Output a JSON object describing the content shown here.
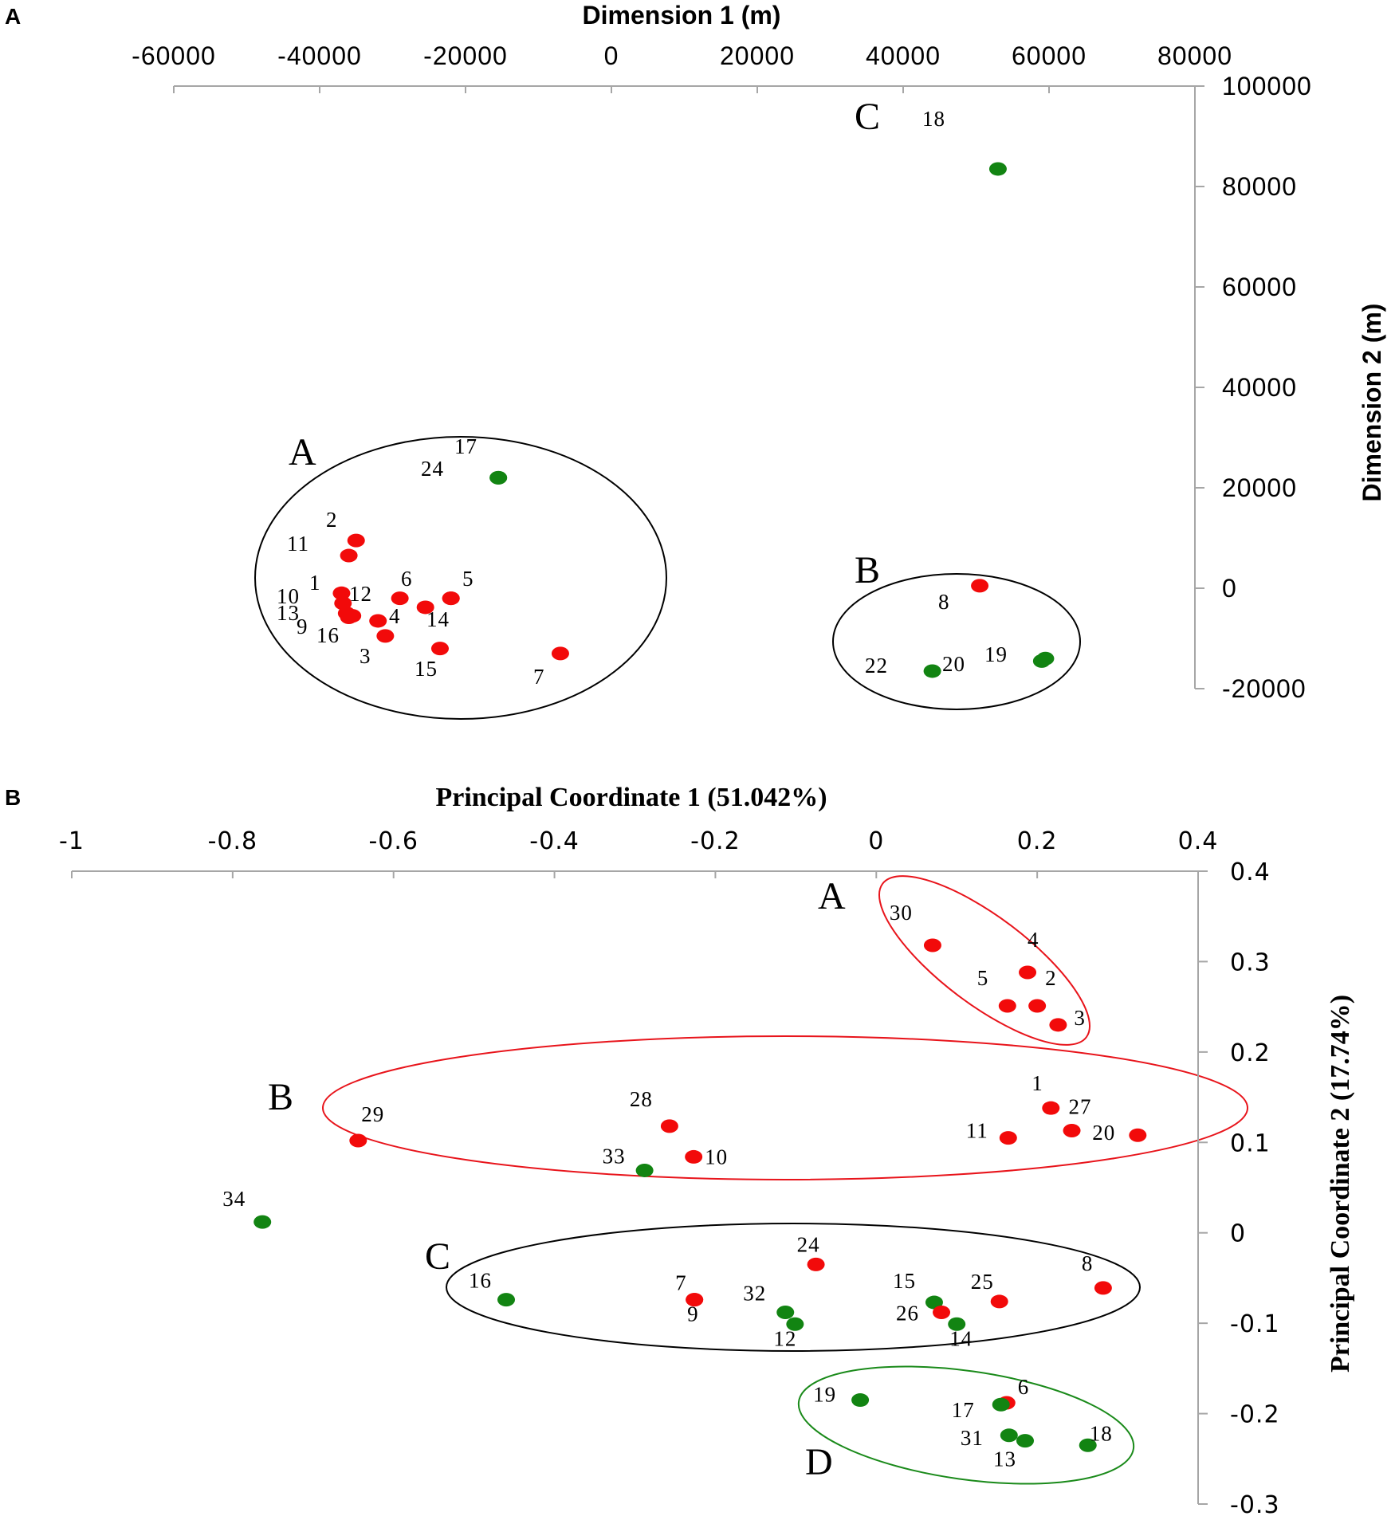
{
  "panels": {
    "a": "A",
    "b": "B"
  },
  "chart_data": [
    {
      "type": "scatter",
      "panel": "A",
      "xlabel": "Dimension 1 (m)",
      "ylabel": "Dimension 2 (m)",
      "xlim": [
        -60000,
        80000
      ],
      "ylim": [
        -20000,
        100000
      ],
      "xticks": [
        -60000,
        -40000,
        -20000,
        0,
        20000,
        40000,
        60000,
        80000
      ],
      "yticks": [
        100000,
        80000,
        60000,
        40000,
        20000,
        0,
        -20000
      ],
      "points": [
        {
          "label": "1",
          "x": -37000,
          "y": -1000,
          "color": "red"
        },
        {
          "label": "10",
          "x": -36800,
          "y": -3000,
          "color": "red"
        },
        {
          "label": "13",
          "x": -36300,
          "y": -5000,
          "color": "red"
        },
        {
          "label": "9",
          "x": -35500,
          "y": -5500,
          "color": "red"
        },
        {
          "label": "16",
          "x": -36000,
          "y": -5800,
          "color": "red"
        },
        {
          "label": "2",
          "x": -35000,
          "y": 9500,
          "color": "red"
        },
        {
          "label": "11",
          "x": -36000,
          "y": 6500,
          "color": "red"
        },
        {
          "label": "12",
          "x": -32000,
          "y": -6500,
          "color": "red"
        },
        {
          "label": "4",
          "x": -29000,
          "y": -2000,
          "color": "red"
        },
        {
          "label": "6",
          "x": -25500,
          "y": -3800,
          "color": "red"
        },
        {
          "label": "3",
          "x": -31000,
          "y": -9500,
          "color": "red"
        },
        {
          "label": "14",
          "x": -22000,
          "y": -2000,
          "color": "red"
        },
        {
          "label": "5",
          "x": -22000,
          "y": -2000,
          "color": "red"
        },
        {
          "label": "15",
          "x": -23500,
          "y": -12000,
          "color": "red"
        },
        {
          "label": "7",
          "x": -7000,
          "y": -13000,
          "color": "red"
        },
        {
          "label": "17",
          "x": -15500,
          "y": 22000,
          "color": "green"
        },
        {
          "label": "24",
          "x": -15500,
          "y": 22000,
          "color": "green"
        },
        {
          "label": "8",
          "x": 50500,
          "y": 500,
          "color": "red"
        },
        {
          "label": "22",
          "x": 44000,
          "y": -16500,
          "color": "green"
        },
        {
          "label": "20",
          "x": 59000,
          "y": -14500,
          "color": "green"
        },
        {
          "label": "19",
          "x": 59500,
          "y": -14000,
          "color": "green"
        },
        {
          "label": "18",
          "x": 53000,
          "y": 83500,
          "color": "green"
        }
      ],
      "point_labels": [
        "1",
        "2",
        "3",
        "4",
        "5",
        "6",
        "7",
        "8",
        "9",
        "10",
        "11",
        "12",
        "13",
        "14",
        "15",
        "16",
        "17",
        "18",
        "19",
        "20",
        "22",
        "24"
      ],
      "groups": [
        "A",
        "B",
        "C"
      ]
    },
    {
      "type": "scatter",
      "panel": "B",
      "xlabel": "Principal Coordinate 1 (51.042%)",
      "ylabel": "Principal Coordinate 2 (17.74%)",
      "xlim": [
        -1,
        0.4
      ],
      "ylim": [
        -0.3,
        0.4
      ],
      "xticks": [
        "-1",
        "-0.8",
        "-0.6",
        "-0.4",
        "-0.2",
        "0",
        "0.2",
        "0.4"
      ],
      "yticks": [
        "0.4",
        "0.3",
        "0.2",
        "0.1",
        "0",
        "-0.1",
        "-0.2",
        "-0.3"
      ],
      "points": [
        {
          "label": "30",
          "x": 0.07,
          "y": 0.318,
          "color": "red"
        },
        {
          "label": "4",
          "x": 0.188,
          "y": 0.288,
          "color": "red"
        },
        {
          "label": "5",
          "x": 0.163,
          "y": 0.251,
          "color": "red"
        },
        {
          "label": "2",
          "x": 0.2,
          "y": 0.251,
          "color": "red"
        },
        {
          "label": "3",
          "x": 0.226,
          "y": 0.23,
          "color": "red"
        },
        {
          "label": "29",
          "x": -0.644,
          "y": 0.102,
          "color": "red"
        },
        {
          "label": "28",
          "x": -0.257,
          "y": 0.118,
          "color": "red"
        },
        {
          "label": "10",
          "x": -0.227,
          "y": 0.084,
          "color": "red"
        },
        {
          "label": "33",
          "x": -0.288,
          "y": 0.069,
          "color": "green"
        },
        {
          "label": "1",
          "x": 0.217,
          "y": 0.138,
          "color": "red"
        },
        {
          "label": "27",
          "x": 0.243,
          "y": 0.113,
          "color": "red"
        },
        {
          "label": "11",
          "x": 0.164,
          "y": 0.105,
          "color": "red"
        },
        {
          "label": "20",
          "x": 0.325,
          "y": 0.108,
          "color": "red"
        },
        {
          "label": "34",
          "x": -0.763,
          "y": 0.012,
          "color": "green"
        },
        {
          "label": "24",
          "x": -0.075,
          "y": -0.035,
          "color": "red"
        },
        {
          "label": "16",
          "x": -0.46,
          "y": -0.074,
          "color": "green"
        },
        {
          "label": "7",
          "x": -0.226,
          "y": -0.074,
          "color": "red"
        },
        {
          "label": "9",
          "x": -0.226,
          "y": -0.074,
          "color": "red"
        },
        {
          "label": "32",
          "x": -0.113,
          "y": -0.088,
          "color": "green"
        },
        {
          "label": "12",
          "x": -0.101,
          "y": -0.101,
          "color": "green"
        },
        {
          "label": "15",
          "x": 0.072,
          "y": -0.077,
          "color": "green"
        },
        {
          "label": "26",
          "x": 0.081,
          "y": -0.088,
          "color": "red"
        },
        {
          "label": "14",
          "x": 0.1,
          "y": -0.101,
          "color": "green"
        },
        {
          "label": "25",
          "x": 0.153,
          "y": -0.076,
          "color": "red"
        },
        {
          "label": "8",
          "x": 0.282,
          "y": -0.061,
          "color": "red"
        },
        {
          "label": "19",
          "x": -0.02,
          "y": -0.185,
          "color": "green"
        },
        {
          "label": "6",
          "x": 0.162,
          "y": -0.188,
          "color": "red"
        },
        {
          "label": "17",
          "x": 0.155,
          "y": -0.19,
          "color": "green"
        },
        {
          "label": "31",
          "x": 0.165,
          "y": -0.224,
          "color": "green"
        },
        {
          "label": "13",
          "x": 0.185,
          "y": -0.23,
          "color": "green"
        },
        {
          "label": "18",
          "x": 0.263,
          "y": -0.235,
          "color": "green"
        }
      ],
      "groups": [
        "A",
        "B",
        "C",
        "D"
      ]
    }
  ]
}
